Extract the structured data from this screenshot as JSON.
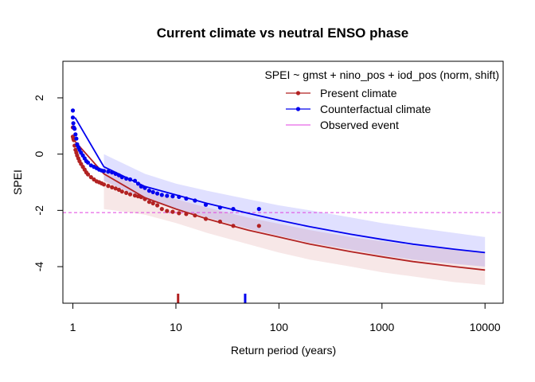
{
  "chart_data": {
    "type": "scatter",
    "title": "Current climate vs neutral ENSO phase",
    "subtitle": "SPEI ~ gmst + nino_pos + iod_pos (norm, shift)",
    "xlabel": "Return period (years)",
    "ylabel": "SPEI",
    "x_scale": "log",
    "xlim": [
      0.8,
      15000
    ],
    "ylim": [
      -5.3,
      3.3
    ],
    "x_ticks": [
      1,
      10,
      100,
      1000,
      10000
    ],
    "x_tick_labels": [
      "1",
      "10",
      "100",
      "1000",
      "10000"
    ],
    "y_ticks": [
      -4,
      -2,
      0,
      2
    ],
    "y_tick_labels": [
      "-4",
      "-2",
      "0",
      "2"
    ],
    "observed_event_value": -2.08,
    "legend": {
      "position": "top-right",
      "entries": [
        "Present climate",
        "Counterfactual climate",
        "Observed event"
      ]
    },
    "colors": {
      "present": "#b22222",
      "present_band": "rgba(178,34,34,0.11)",
      "counterfactual": "#0000ee",
      "counterfactual_band": "rgba(0,0,255,0.12)",
      "observed": "#e040e0"
    },
    "series": [
      {
        "name": "Present climate",
        "fit": {
          "x": [
            1.05,
            2,
            5,
            10,
            20,
            50,
            100,
            200,
            500,
            1000,
            2000,
            5000,
            10000
          ],
          "y": [
            0.45,
            -0.7,
            -1.55,
            -1.95,
            -2.3,
            -2.7,
            -2.95,
            -3.2,
            -3.47,
            -3.65,
            -3.82,
            -4.0,
            -4.12
          ]
        },
        "band": {
          "x": [
            2,
            5,
            10,
            20,
            50,
            100,
            200,
            500,
            1000,
            2000,
            5000,
            10000
          ],
          "upper": [
            -0.5,
            -1.25,
            -1.6,
            -1.9,
            -2.25,
            -2.48,
            -2.7,
            -2.95,
            -3.1,
            -3.25,
            -3.4,
            -3.5
          ],
          "lower": [
            -1.95,
            -2.15,
            -2.45,
            -2.8,
            -3.2,
            -3.5,
            -3.75,
            -4.0,
            -4.2,
            -4.35,
            -4.55,
            -4.65
          ]
        },
        "points": {
          "x": [
            1.0,
            1.0,
            1.01,
            1.02,
            1.04,
            1.06,
            1.08,
            1.1,
            1.13,
            1.16,
            1.2,
            1.25,
            1.3,
            1.35,
            1.4,
            1.5,
            1.6,
            1.7,
            1.8,
            1.9,
            2.0,
            2.2,
            2.4,
            2.6,
            2.8,
            3.0,
            3.3,
            3.6,
            4.0,
            4.3,
            4.6,
            5.0,
            5.5,
            6.0,
            6.6,
            7.3,
            8.2,
            9.3,
            10.7,
            12.6,
            15.3,
            19.5,
            26.8,
            36,
            64
          ],
          "y": [
            0.95,
            0.62,
            0.55,
            0.5,
            0.3,
            0.15,
            0.05,
            -0.05,
            -0.15,
            -0.25,
            -0.35,
            -0.45,
            -0.55,
            -0.65,
            -0.72,
            -0.82,
            -0.9,
            -0.97,
            -1.0,
            -1.04,
            -1.08,
            -1.13,
            -1.18,
            -1.22,
            -1.27,
            -1.33,
            -1.38,
            -1.43,
            -1.47,
            -1.5,
            -1.53,
            -1.6,
            -1.7,
            -1.75,
            -1.82,
            -1.95,
            -2.02,
            -2.05,
            -2.1,
            -2.13,
            -2.18,
            -2.3,
            -2.4,
            -2.55,
            -2.55
          ]
        },
        "event_return_period": 10.5
      },
      {
        "name": "Counterfactual climate",
        "fit": {
          "x": [
            1.05,
            2,
            5,
            10,
            20,
            50,
            100,
            200,
            500,
            1000,
            2000,
            5000,
            10000
          ],
          "y": [
            1.3,
            -0.45,
            -1.15,
            -1.45,
            -1.75,
            -2.1,
            -2.35,
            -2.58,
            -2.85,
            -3.03,
            -3.2,
            -3.38,
            -3.5
          ]
        },
        "band": {
          "x": [
            2,
            5,
            10,
            20,
            50,
            100,
            200,
            500,
            1000,
            2000,
            5000,
            10000
          ],
          "upper": [
            0.0,
            -0.7,
            -1.05,
            -1.3,
            -1.6,
            -1.82,
            -2.0,
            -2.25,
            -2.45,
            -2.6,
            -2.8,
            -2.95
          ],
          "lower": [
            -0.95,
            -1.6,
            -1.95,
            -2.25,
            -2.65,
            -2.9,
            -3.15,
            -3.4,
            -3.6,
            -3.75,
            -3.9,
            -4.0
          ]
        },
        "points": {
          "x": [
            1.0,
            1.0,
            1.01,
            1.02,
            1.04,
            1.06,
            1.08,
            1.1,
            1.13,
            1.16,
            1.2,
            1.25,
            1.3,
            1.35,
            1.4,
            1.5,
            1.6,
            1.7,
            1.8,
            1.9,
            2.0,
            2.2,
            2.4,
            2.6,
            2.8,
            3.0,
            3.3,
            3.6,
            4.0,
            4.3,
            4.6,
            5.0,
            5.5,
            6.0,
            6.6,
            7.3,
            8.2,
            9.3,
            10.7,
            12.6,
            15.3,
            19.5,
            26.8,
            36,
            64
          ],
          "y": [
            1.55,
            1.3,
            1.1,
            0.95,
            0.9,
            0.7,
            0.55,
            0.35,
            0.25,
            0.15,
            0.05,
            -0.05,
            -0.15,
            -0.25,
            -0.3,
            -0.4,
            -0.45,
            -0.5,
            -0.55,
            -0.58,
            -0.6,
            -0.62,
            -0.65,
            -0.7,
            -0.75,
            -0.82,
            -0.87,
            -0.9,
            -0.95,
            -1.05,
            -1.15,
            -1.2,
            -1.3,
            -1.35,
            -1.4,
            -1.45,
            -1.48,
            -1.5,
            -1.52,
            -1.58,
            -1.65,
            -1.8,
            -1.9,
            -1.95,
            -1.95
          ]
        },
        "event_return_period": 47
      }
    ]
  }
}
